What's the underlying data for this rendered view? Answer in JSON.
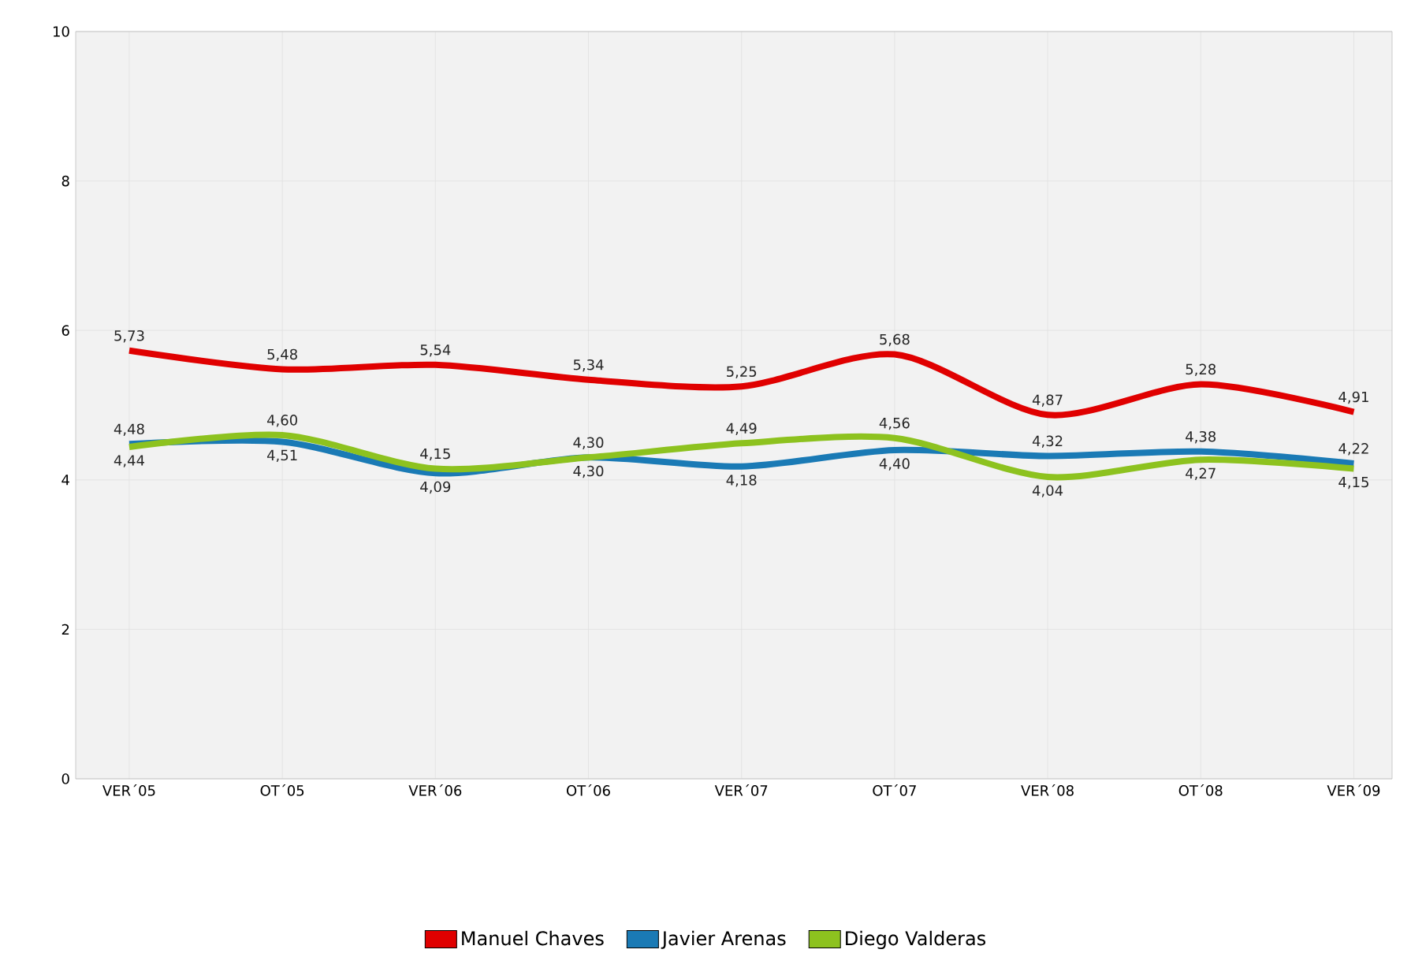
{
  "chart_data": {
    "type": "line",
    "categories": [
      "VER´05",
      "OT´05",
      "VER´06",
      "OT´06",
      "VER´07",
      "OT´07",
      "VER´08",
      "OT´08",
      "VER´09"
    ],
    "series": [
      {
        "name": "Manuel Chaves",
        "color": "#e00000",
        "values": [
          5.73,
          5.48,
          5.54,
          5.34,
          5.25,
          5.68,
          4.87,
          5.28,
          4.91
        ],
        "value_labels": [
          "5,73",
          "5,48",
          "5,54",
          "5,34",
          "5,25",
          "5,68",
          "4,87",
          "5,28",
          "4,91"
        ]
      },
      {
        "name": "Javier Arenas",
        "color": "#1a7ab5",
        "values": [
          4.48,
          4.51,
          4.09,
          4.3,
          4.18,
          4.4,
          4.32,
          4.38,
          4.22
        ],
        "value_labels": [
          "4,48",
          "4,51",
          "4,09",
          "4,30",
          "4,18",
          "4,40",
          "4,32",
          "4,38",
          "4,22"
        ]
      },
      {
        "name": "Diego Valderas",
        "color": "#8dc21f",
        "values": [
          4.44,
          4.6,
          4.15,
          4.3,
          4.49,
          4.56,
          4.04,
          4.27,
          4.15
        ],
        "value_labels": [
          "4,44",
          "4,60",
          "4,15",
          "4,30",
          "4,49",
          "4,56",
          "4,04",
          "4,27",
          "4,15"
        ]
      }
    ],
    "ylim": [
      0,
      10
    ],
    "yticks": [
      0,
      2,
      4,
      6,
      8,
      10
    ],
    "grid": true,
    "legend": "bottom",
    "line_style": "solid",
    "marker": "none"
  }
}
